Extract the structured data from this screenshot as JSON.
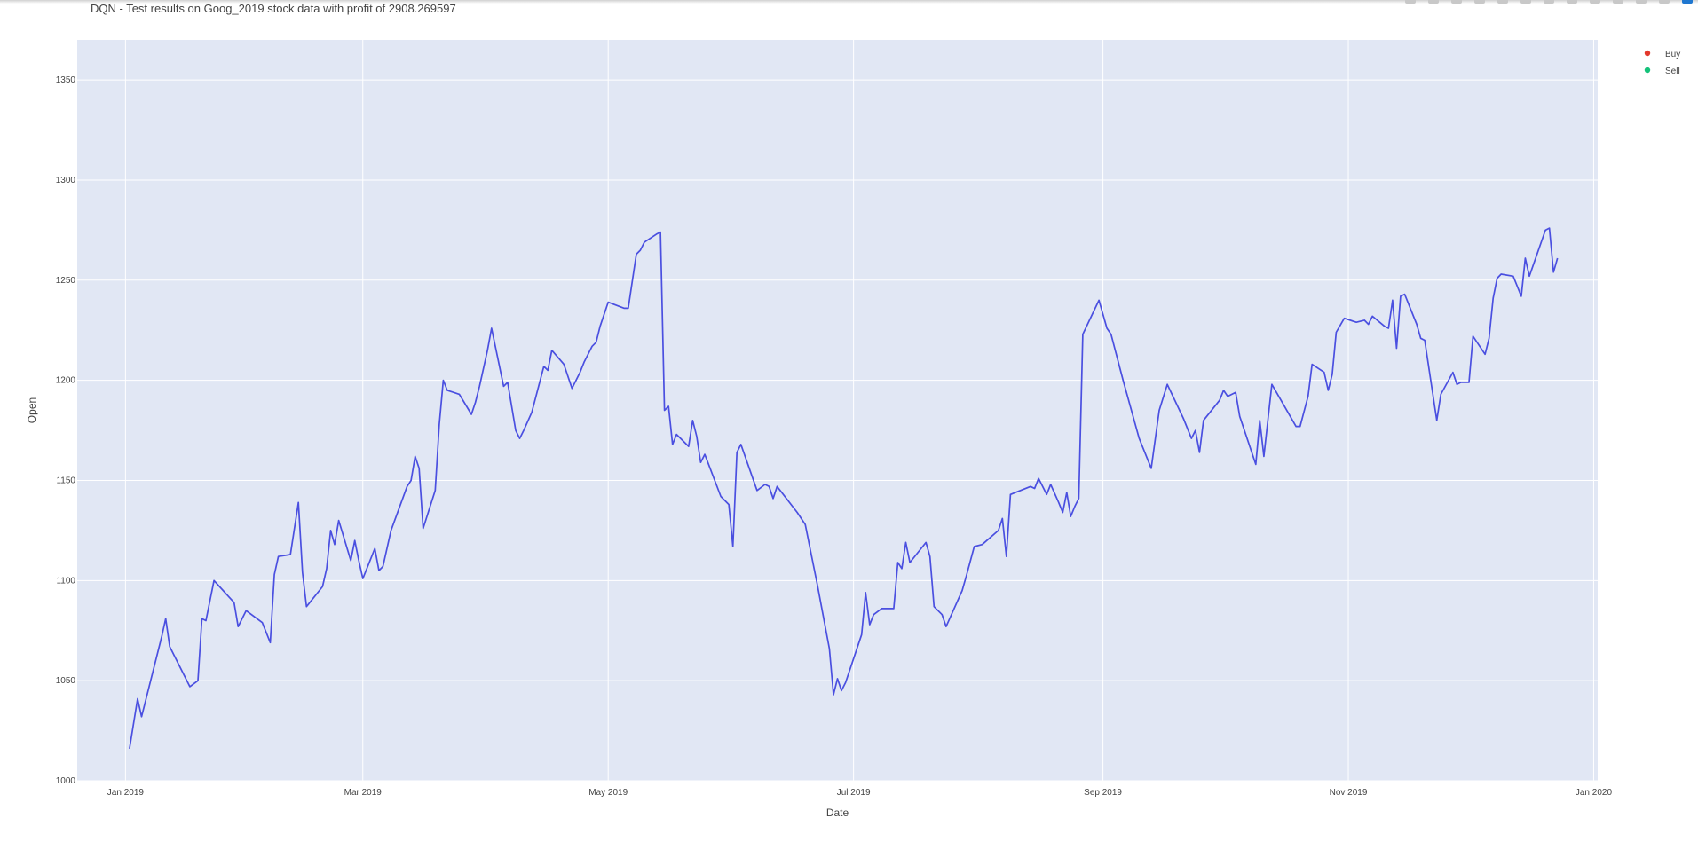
{
  "title": "DQN - Test results on Goog_2019 stock data with profit of 2908.269597",
  "colors": {
    "line": "#4a4fe0",
    "buy": "#e3382c",
    "sell": "#14c27a",
    "plot_bg": "#e1e7f4",
    "grid": "#ffffff"
  },
  "modebar_icons": [
    "camera-icon",
    "zoom-icon",
    "pan-icon",
    "select-icon",
    "lasso-icon",
    "zoom-in-icon",
    "zoom-out-icon",
    "autoscale-icon",
    "reset-icon",
    "spike-icon",
    "hover-closest-icon",
    "hover-compare-icon",
    "plotly-logo-icon"
  ],
  "chart_data": {
    "type": "line",
    "title": "DQN - Test results on Goog_2019 stock data with profit of 2908.269597",
    "xlabel": "Date",
    "ylabel": "Open",
    "xlim": [
      "2018-12-20",
      "2020-01-02"
    ],
    "ylim": [
      1000,
      1370
    ],
    "x_ticks": [
      {
        "label": "Jan 2019",
        "date": "2019-01-01"
      },
      {
        "label": "Mar 2019",
        "date": "2019-03-01"
      },
      {
        "label": "May 2019",
        "date": "2019-05-01"
      },
      {
        "label": "Jul 2019",
        "date": "2019-07-01"
      },
      {
        "label": "Sep 2019",
        "date": "2019-09-01"
      },
      {
        "label": "Nov 2019",
        "date": "2019-11-01"
      },
      {
        "label": "Jan 2020",
        "date": "2020-01-01"
      }
    ],
    "y_ticks": [
      1000,
      1050,
      1100,
      1150,
      1200,
      1250,
      1300,
      1350
    ],
    "legend_position": "top-right",
    "grid": true,
    "series": [
      {
        "kind": "line",
        "points": [
          [
            "2019-01-02",
            1016
          ],
          [
            "2019-01-04",
            1041
          ],
          [
            "2019-01-05",
            1032
          ],
          [
            "2019-01-10",
            1072
          ],
          [
            "2019-01-11",
            1081
          ],
          [
            "2019-01-12",
            1067
          ],
          [
            "2019-01-17",
            1047
          ],
          [
            "2019-01-19",
            1050
          ],
          [
            "2019-01-20",
            1081
          ],
          [
            "2019-01-21",
            1080
          ],
          [
            "2019-01-23",
            1100
          ],
          [
            "2019-01-28",
            1089
          ],
          [
            "2019-01-29",
            1077
          ],
          [
            "2019-01-31",
            1085
          ],
          [
            "2019-02-04",
            1079
          ],
          [
            "2019-02-06",
            1069
          ],
          [
            "2019-02-07",
            1103
          ],
          [
            "2019-02-08",
            1112
          ],
          [
            "2019-02-11",
            1113
          ],
          [
            "2019-02-13",
            1139
          ],
          [
            "2019-02-14",
            1104
          ],
          [
            "2019-02-15",
            1087
          ],
          [
            "2019-02-19",
            1097
          ],
          [
            "2019-02-20",
            1106
          ],
          [
            "2019-02-21",
            1125
          ],
          [
            "2019-02-22",
            1118
          ],
          [
            "2019-02-23",
            1130
          ],
          [
            "2019-02-26",
            1110
          ],
          [
            "2019-02-27",
            1120
          ],
          [
            "2019-02-28",
            1110
          ],
          [
            "2019-03-01",
            1101
          ],
          [
            "2019-03-04",
            1116
          ],
          [
            "2019-03-05",
            1105
          ],
          [
            "2019-03-06",
            1107
          ],
          [
            "2019-03-08",
            1125
          ],
          [
            "2019-03-12",
            1147
          ],
          [
            "2019-03-13",
            1150
          ],
          [
            "2019-03-14",
            1162
          ],
          [
            "2019-03-15",
            1156
          ],
          [
            "2019-03-16",
            1126
          ],
          [
            "2019-03-19",
            1145
          ],
          [
            "2019-03-20",
            1178
          ],
          [
            "2019-03-21",
            1200
          ],
          [
            "2019-03-22",
            1195
          ],
          [
            "2019-03-25",
            1193
          ],
          [
            "2019-03-28",
            1183
          ],
          [
            "2019-03-29",
            1189
          ],
          [
            "2019-03-30",
            1197
          ],
          [
            "2019-04-01",
            1215
          ],
          [
            "2019-04-02",
            1226
          ],
          [
            "2019-04-05",
            1197
          ],
          [
            "2019-04-06",
            1199
          ],
          [
            "2019-04-08",
            1175
          ],
          [
            "2019-04-09",
            1171
          ],
          [
            "2019-04-10",
            1175
          ],
          [
            "2019-04-12",
            1184
          ],
          [
            "2019-04-15",
            1207
          ],
          [
            "2019-04-16",
            1205
          ],
          [
            "2019-04-17",
            1215
          ],
          [
            "2019-04-20",
            1208
          ],
          [
            "2019-04-22",
            1196
          ],
          [
            "2019-04-24",
            1204
          ],
          [
            "2019-04-25",
            1209
          ],
          [
            "2019-04-27",
            1217
          ],
          [
            "2019-04-28",
            1219
          ],
          [
            "2019-04-29",
            1227
          ],
          [
            "2019-05-01",
            1239
          ],
          [
            "2019-05-05",
            1236
          ],
          [
            "2019-05-06",
            1236
          ],
          [
            "2019-05-08",
            1263
          ],
          [
            "2019-05-09",
            1265
          ],
          [
            "2019-05-10",
            1269
          ],
          [
            "2019-05-13",
            1273
          ],
          [
            "2019-05-14",
            1274
          ],
          [
            "2019-05-15",
            1185
          ],
          [
            "2019-05-16",
            1187
          ],
          [
            "2019-05-17",
            1168
          ],
          [
            "2019-05-18",
            1173
          ],
          [
            "2019-05-21",
            1167
          ],
          [
            "2019-05-22",
            1180
          ],
          [
            "2019-05-23",
            1172
          ],
          [
            "2019-05-24",
            1159
          ],
          [
            "2019-05-25",
            1163
          ],
          [
            "2019-05-29",
            1142
          ],
          [
            "2019-05-31",
            1138
          ],
          [
            "2019-06-01",
            1117
          ],
          [
            "2019-06-02",
            1164
          ],
          [
            "2019-06-03",
            1168
          ],
          [
            "2019-06-07",
            1145
          ],
          [
            "2019-06-09",
            1148
          ],
          [
            "2019-06-10",
            1147
          ],
          [
            "2019-06-11",
            1141
          ],
          [
            "2019-06-12",
            1147
          ],
          [
            "2019-06-17",
            1134
          ],
          [
            "2019-06-19",
            1128
          ],
          [
            "2019-06-22",
            1098
          ],
          [
            "2019-06-25",
            1066
          ],
          [
            "2019-06-26",
            1043
          ],
          [
            "2019-06-27",
            1051
          ],
          [
            "2019-06-28",
            1045
          ],
          [
            "2019-06-29",
            1049
          ],
          [
            "2019-07-03",
            1073
          ],
          [
            "2019-07-04",
            1094
          ],
          [
            "2019-07-05",
            1078
          ],
          [
            "2019-07-06",
            1083
          ],
          [
            "2019-07-08",
            1086
          ],
          [
            "2019-07-11",
            1086
          ],
          [
            "2019-07-12",
            1109
          ],
          [
            "2019-07-13",
            1106
          ],
          [
            "2019-07-14",
            1119
          ],
          [
            "2019-07-15",
            1109
          ],
          [
            "2019-07-19",
            1119
          ],
          [
            "2019-07-20",
            1112
          ],
          [
            "2019-07-21",
            1087
          ],
          [
            "2019-07-23",
            1083
          ],
          [
            "2019-07-24",
            1077
          ],
          [
            "2019-07-28",
            1095
          ],
          [
            "2019-07-29",
            1102
          ],
          [
            "2019-07-31",
            1117
          ],
          [
            "2019-08-02",
            1118
          ],
          [
            "2019-08-06",
            1125
          ],
          [
            "2019-08-07",
            1131
          ],
          [
            "2019-08-08",
            1112
          ],
          [
            "2019-08-09",
            1143
          ],
          [
            "2019-08-14",
            1147
          ],
          [
            "2019-08-15",
            1146
          ],
          [
            "2019-08-16",
            1151
          ],
          [
            "2019-08-18",
            1143
          ],
          [
            "2019-08-19",
            1148
          ],
          [
            "2019-08-21",
            1139
          ],
          [
            "2019-08-22",
            1134
          ],
          [
            "2019-08-23",
            1144
          ],
          [
            "2019-08-24",
            1132
          ],
          [
            "2019-08-25",
            1137
          ],
          [
            "2019-08-26",
            1141
          ],
          [
            "2019-08-27",
            1223
          ],
          [
            "2019-08-31",
            1240
          ],
          [
            "2019-09-02",
            1226
          ],
          [
            "2019-09-03",
            1223
          ],
          [
            "2019-09-06",
            1200
          ],
          [
            "2019-09-10",
            1171
          ],
          [
            "2019-09-13",
            1156
          ],
          [
            "2019-09-15",
            1185
          ],
          [
            "2019-09-17",
            1198
          ],
          [
            "2019-09-21",
            1181
          ],
          [
            "2019-09-23",
            1171
          ],
          [
            "2019-09-24",
            1175
          ],
          [
            "2019-09-25",
            1164
          ],
          [
            "2019-09-26",
            1180
          ],
          [
            "2019-09-30",
            1190
          ],
          [
            "2019-10-01",
            1195
          ],
          [
            "2019-10-02",
            1192
          ],
          [
            "2019-10-04",
            1194
          ],
          [
            "2019-10-05",
            1182
          ],
          [
            "2019-10-09",
            1158
          ],
          [
            "2019-10-10",
            1180
          ],
          [
            "2019-10-11",
            1162
          ],
          [
            "2019-10-13",
            1198
          ],
          [
            "2019-10-19",
            1177
          ],
          [
            "2019-10-20",
            1177
          ],
          [
            "2019-10-22",
            1192
          ],
          [
            "2019-10-23",
            1208
          ],
          [
            "2019-10-26",
            1204
          ],
          [
            "2019-10-27",
            1195
          ],
          [
            "2019-10-28",
            1203
          ],
          [
            "2019-10-29",
            1224
          ],
          [
            "2019-10-31",
            1231
          ],
          [
            "2019-11-03",
            1229
          ],
          [
            "2019-11-05",
            1230
          ],
          [
            "2019-11-06",
            1228
          ],
          [
            "2019-11-07",
            1232
          ],
          [
            "2019-11-10",
            1227
          ],
          [
            "2019-11-11",
            1226
          ],
          [
            "2019-11-12",
            1240
          ],
          [
            "2019-11-13",
            1216
          ],
          [
            "2019-11-14",
            1242
          ],
          [
            "2019-11-15",
            1243
          ],
          [
            "2019-11-18",
            1228
          ],
          [
            "2019-11-19",
            1221
          ],
          [
            "2019-11-20",
            1220
          ],
          [
            "2019-11-23",
            1180
          ],
          [
            "2019-11-24",
            1193
          ],
          [
            "2019-11-27",
            1204
          ],
          [
            "2019-11-28",
            1198
          ],
          [
            "2019-11-29",
            1199
          ],
          [
            "2019-12-01",
            1199
          ],
          [
            "2019-12-02",
            1222
          ],
          [
            "2019-12-05",
            1213
          ],
          [
            "2019-12-06",
            1221
          ],
          [
            "2019-12-07",
            1241
          ],
          [
            "2019-12-08",
            1251
          ],
          [
            "2019-12-09",
            1253
          ],
          [
            "2019-12-12",
            1252
          ],
          [
            "2019-12-14",
            1242
          ],
          [
            "2019-12-15",
            1261
          ],
          [
            "2019-12-16",
            1252
          ],
          [
            "2019-12-20",
            1275
          ],
          [
            "2019-12-21",
            1276
          ],
          [
            "2019-12-22",
            1254
          ],
          [
            "2019-12-23",
            1261
          ]
        ]
      }
    ]
  },
  "legend": [
    {
      "label": "Buy",
      "color_key": "buy"
    },
    {
      "label": "Sell",
      "color_key": "sell"
    }
  ]
}
